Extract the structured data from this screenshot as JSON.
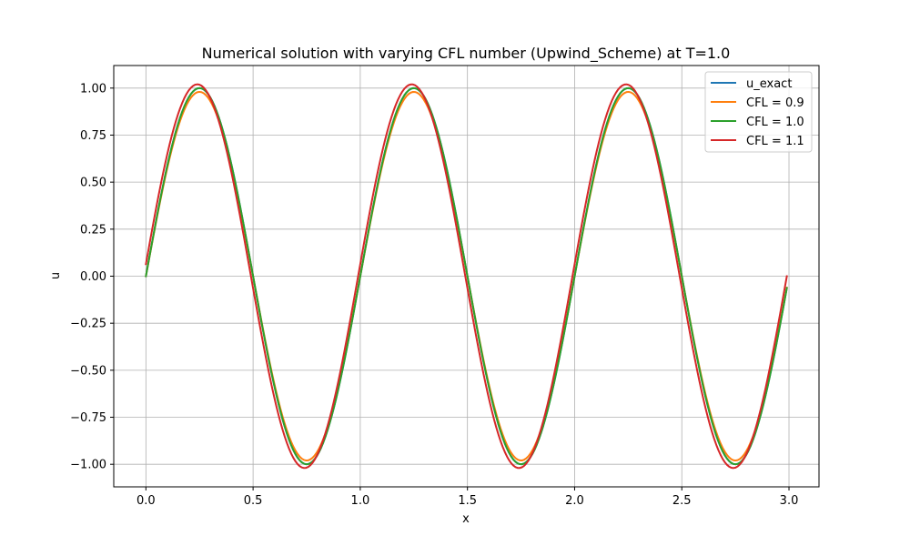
{
  "chart_data": {
    "type": "line",
    "title": "Numerical solution with varying CFL number (Upwind_Scheme) at T=1.0",
    "xlabel": "x",
    "ylabel": "u",
    "xlim": [
      -0.15,
      3.14
    ],
    "ylim": [
      -1.12,
      1.12
    ],
    "xticks": [
      0.0,
      0.5,
      1.0,
      1.5,
      2.0,
      2.5,
      3.0
    ],
    "xtick_labels": [
      "0.0",
      "0.5",
      "1.0",
      "1.5",
      "2.0",
      "2.5",
      "3.0"
    ],
    "yticks": [
      -1.0,
      -0.75,
      -0.5,
      -0.25,
      0.0,
      0.25,
      0.5,
      0.75,
      1.0
    ],
    "ytick_labels": [
      "−1.00",
      "−0.75",
      "−0.50",
      "−0.25",
      "0.00",
      "0.25",
      "0.50",
      "0.75",
      "1.00"
    ],
    "grid": true,
    "legend_position": "top-right",
    "x_range": [
      0.0,
      2.99
    ],
    "series": [
      {
        "name": "u_exact",
        "color": "#1f77b4",
        "amplitude": 1.0,
        "phase_shift": 0.0
      },
      {
        "name": "CFL = 0.9",
        "color": "#ff7f0e",
        "amplitude": 0.98,
        "phase_shift": 0.0
      },
      {
        "name": "CFL = 1.0",
        "color": "#2ca02c",
        "amplitude": 1.0,
        "phase_shift": 0.0
      },
      {
        "name": "CFL = 1.1",
        "color": "#d62728",
        "amplitude": 1.02,
        "phase_shift": 0.01
      }
    ]
  }
}
